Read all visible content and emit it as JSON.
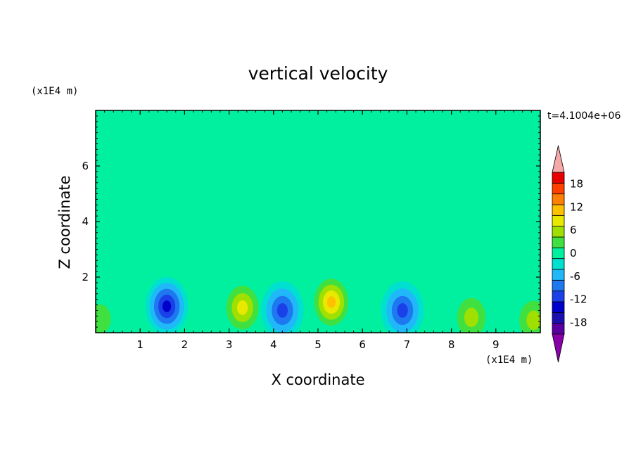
{
  "chart_data": {
    "type": "heatmap",
    "title": "vertical velocity",
    "xlabel": "X coordinate",
    "ylabel": "Z coordinate",
    "x_units": "(x1E4 m)",
    "y_units": "(x1E4 m)",
    "time_label": "t=4.1004e+06",
    "xlim": [
      0,
      10
    ],
    "ylim": [
      0,
      8
    ],
    "x_ticks": [
      "1",
      "2",
      "3",
      "4",
      "5",
      "6",
      "7",
      "8",
      "9"
    ],
    "y_ticks": [
      "2",
      "4",
      "6"
    ],
    "colorbar": {
      "ticks": [
        "18",
        "12",
        "6",
        "0",
        "-6",
        "-12",
        "-18"
      ],
      "levels": [
        -21,
        -18,
        -15,
        -12,
        -9,
        -6,
        -3,
        0,
        3,
        6,
        9,
        12,
        15,
        18,
        21
      ],
      "colors": [
        "#5a00a0",
        "#1a10b0",
        "#0000cc",
        "#1a40e8",
        "#1e78f0",
        "#20b8f8",
        "#00e0d0",
        "#00f0a0",
        "#40e040",
        "#a0e000",
        "#e8e800",
        "#ffc000",
        "#ff8000",
        "#ff4000",
        "#e80000"
      ],
      "under_color": "#8800a8",
      "over_color": "#f4a8a8"
    },
    "features": [
      {
        "x": 1.6,
        "z": 0.95,
        "value": -14
      },
      {
        "x": 3.3,
        "z": 0.9,
        "value": 12
      },
      {
        "x": 4.2,
        "z": 0.8,
        "value": -11
      },
      {
        "x": 5.3,
        "z": 1.1,
        "value": 13
      },
      {
        "x": 6.9,
        "z": 0.8,
        "value": -12
      },
      {
        "x": 8.45,
        "z": 0.55,
        "value": 7
      },
      {
        "x": 9.85,
        "z": 0.45,
        "value": 9
      },
      {
        "x": 0.1,
        "z": 0.5,
        "value": 5
      }
    ]
  }
}
